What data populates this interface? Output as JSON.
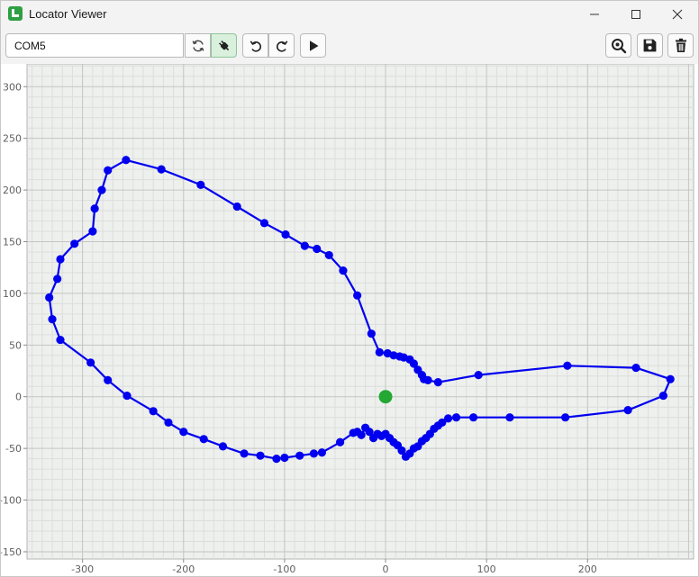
{
  "window": {
    "title": "Locator Viewer",
    "controls": {
      "minimize": "—",
      "maximize": "□",
      "close": "✕"
    }
  },
  "toolbar": {
    "port_value": "COM5",
    "icons": [
      "refresh-icon",
      "connect-plug-icon",
      "undo-icon",
      "redo-icon",
      "play-icon",
      "zoom-fit-icon",
      "save-icon",
      "delete-icon"
    ],
    "accent_active": "#d8f0dc"
  },
  "chart_data": {
    "type": "line",
    "title": "",
    "xlabel": "",
    "ylabel": "",
    "xlim": [
      -355,
      305
    ],
    "ylim": [
      -157,
      322
    ],
    "x_ticks": [
      -300,
      -200,
      -100,
      0,
      100,
      200
    ],
    "y_ticks": [
      300,
      250,
      200,
      150,
      100,
      50,
      0,
      -50,
      -100,
      -150
    ],
    "x_tick_labels": [
      "-300",
      "-200",
      "-100",
      "0",
      "100",
      "200"
    ],
    "y_tick_labels": [
      "300",
      "250",
      "200",
      "150",
      "100",
      "50",
      "0",
      "-50",
      "-100",
      "-150"
    ],
    "grid": true,
    "colors": {
      "path": "#0000ee",
      "origin": "#22a833"
    },
    "series": [
      {
        "closed": true,
        "points": [
          [
            -257,
            229
          ],
          [
            -222,
            220
          ],
          [
            -183,
            205
          ],
          [
            -147,
            184
          ],
          [
            -120,
            168
          ],
          [
            -99,
            157
          ],
          [
            -80,
            146
          ],
          [
            -68,
            143
          ],
          [
            -56,
            137
          ],
          [
            -42,
            122
          ],
          [
            -28,
            98
          ],
          [
            -14,
            61
          ],
          [
            -6,
            43
          ],
          [
            2,
            42
          ],
          [
            8,
            40
          ],
          [
            14,
            39
          ],
          [
            18,
            38
          ],
          [
            24,
            36
          ],
          [
            28,
            32
          ],
          [
            32,
            26
          ],
          [
            36,
            21
          ],
          [
            38,
            17
          ],
          [
            42,
            16
          ],
          [
            52,
            14
          ],
          [
            92,
            21
          ],
          [
            180,
            30
          ],
          [
            248,
            28
          ],
          [
            282,
            17
          ],
          [
            275,
            1
          ],
          [
            240,
            -13
          ],
          [
            178,
            -20
          ],
          [
            123,
            -20
          ],
          [
            87,
            -20
          ],
          [
            70,
            -20
          ],
          [
            62,
            -21
          ],
          [
            56,
            -25
          ],
          [
            52,
            -28
          ],
          [
            48,
            -31
          ],
          [
            44,
            -36
          ],
          [
            40,
            -40
          ],
          [
            36,
            -43
          ],
          [
            32,
            -48
          ],
          [
            28,
            -50
          ],
          [
            24,
            -55
          ],
          [
            20,
            -58
          ],
          [
            16,
            -52
          ],
          [
            12,
            -47
          ],
          [
            8,
            -44
          ],
          [
            4,
            -40
          ],
          [
            0,
            -36
          ],
          [
            -4,
            -38
          ],
          [
            -8,
            -36
          ],
          [
            -12,
            -40
          ],
          [
            -16,
            -34
          ],
          [
            -20,
            -30
          ],
          [
            -24,
            -37
          ],
          [
            -28,
            -34
          ],
          [
            -32,
            -35
          ],
          [
            -45,
            -44
          ],
          [
            -63,
            -54
          ],
          [
            -71,
            -55
          ],
          [
            -85,
            -57
          ],
          [
            -100,
            -59
          ],
          [
            -108,
            -60
          ],
          [
            -124,
            -57
          ],
          [
            -140,
            -55
          ],
          [
            -161,
            -48
          ],
          [
            -180,
            -41
          ],
          [
            -200,
            -34
          ],
          [
            -215,
            -25
          ],
          [
            -230,
            -14
          ],
          [
            -256,
            1
          ],
          [
            -275,
            16
          ],
          [
            -292,
            33
          ],
          [
            -322,
            55
          ],
          [
            -330,
            75
          ],
          [
            -333,
            96
          ],
          [
            -325,
            114
          ],
          [
            -322,
            133
          ],
          [
            -308,
            148
          ],
          [
            -290,
            160
          ],
          [
            -288,
            182
          ],
          [
            -281,
            200
          ],
          [
            -275,
            219
          ]
        ]
      }
    ],
    "origin_marker": [
      0,
      0
    ]
  }
}
